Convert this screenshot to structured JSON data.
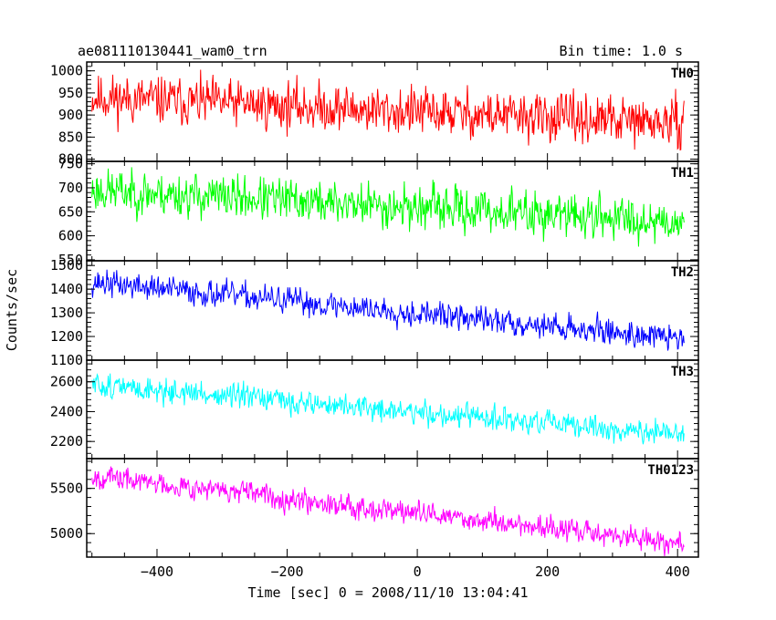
{
  "header": {
    "title": "ae081110130441_wam0_trn",
    "bin_time": "Bin time: 1.0 s"
  },
  "chart_data": {
    "type": "line",
    "xlabel": "Time [sec] 0 = 2008/11/10 13:04:41",
    "ylabel": "Counts/sec",
    "xlim": [
      -508,
      432
    ],
    "x_ticks": [
      "−400",
      "−200",
      "0",
      "200",
      "400"
    ],
    "x_tick_values": [
      -400,
      -200,
      0,
      200,
      400
    ],
    "x_range_data": [
      -500,
      410
    ],
    "panels": [
      {
        "name": "TH0",
        "color": "#ff0000",
        "ylim": [
          795,
          1020
        ],
        "y_ticks": [
          "1000",
          "950",
          "900",
          "850",
          "800"
        ],
        "y_tick_values": [
          1000,
          950,
          900,
          850,
          800
        ],
        "trend": {
          "x": [
            -500,
            410
          ],
          "y": [
            940,
            880
          ]
        },
        "noise_amplitude": 40,
        "seed": 11
      },
      {
        "name": "TH1",
        "color": "#00ff00",
        "ylim": [
          548,
          755
        ],
        "y_ticks": [
          "750",
          "700",
          "650",
          "600",
          "550"
        ],
        "y_tick_values": [
          750,
          700,
          650,
          600,
          550
        ],
        "trend": {
          "x": [
            -500,
            410
          ],
          "y": [
            695,
            630
          ]
        },
        "noise_amplitude": 34,
        "seed": 23
      },
      {
        "name": "TH2",
        "color": "#0000ff",
        "ylim": [
          1100,
          1520
        ],
        "y_ticks": [
          "1500",
          "1400",
          "1300",
          "1200",
          "1100"
        ],
        "y_tick_values": [
          1500,
          1400,
          1300,
          1200,
          1100
        ],
        "trend": {
          "x": [
            -500,
            410
          ],
          "y": [
            1430,
            1190
          ]
        },
        "noise_amplitude": 42,
        "seed": 37
      },
      {
        "name": "TH3",
        "color": "#00ffff",
        "ylim": [
          2085,
          2745
        ],
        "y_ticks": [
          "2600",
          "2400",
          "2200"
        ],
        "y_tick_values": [
          2600,
          2400,
          2200
        ],
        "trend": {
          "x": [
            -500,
            410
          ],
          "y": [
            2580,
            2240
          ]
        },
        "noise_amplitude": 62,
        "seed": 51
      },
      {
        "name": "TH0123",
        "color": "#ff00ff",
        "ylim": [
          4740,
          5830
        ],
        "y_ticks": [
          "5500",
          "5000"
        ],
        "y_tick_values": [
          5500,
          5000
        ],
        "trend": {
          "x": [
            -500,
            410
          ],
          "y": [
            5640,
            4890
          ]
        },
        "noise_amplitude": 95,
        "seed": 67
      }
    ]
  }
}
